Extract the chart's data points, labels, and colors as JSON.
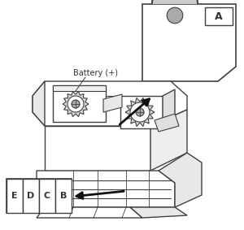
{
  "bg_color": "#ffffff",
  "line_color": "#404040",
  "text_color": "#333333",
  "arrow_color": "#111111",
  "battery_label": "Battery (+)",
  "connector_labels": [
    "E",
    "D",
    "C",
    "B"
  ],
  "fuse_label": "A",
  "figsize": [
    3.0,
    2.83
  ],
  "dpi": 100
}
